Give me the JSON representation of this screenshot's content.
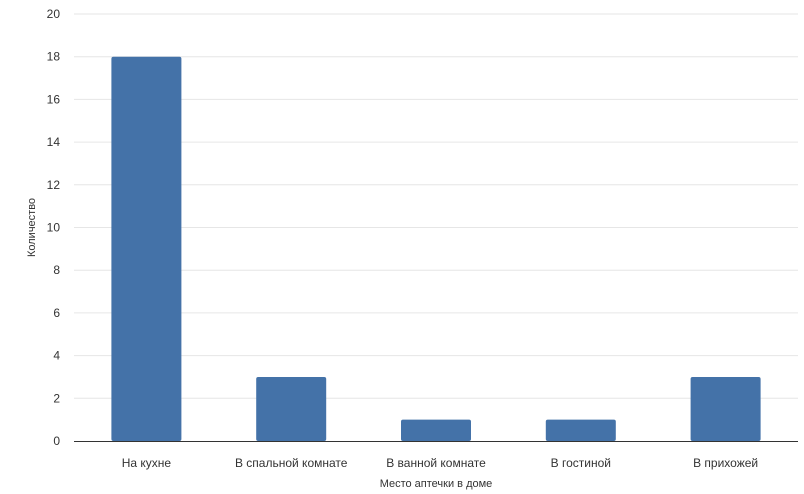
{
  "chart_data": {
    "type": "bar",
    "title": "",
    "xlabel": "Место аптечки в доме",
    "ylabel": "Количество",
    "categories": [
      "На кухне",
      "В спальной комнате",
      "В ванной комнате",
      "В гостиной",
      "В прихожей"
    ],
    "values": [
      18,
      3,
      1,
      1,
      3
    ],
    "ylim": [
      0,
      20
    ],
    "yticks": [
      "0",
      "2",
      "4",
      "6",
      "8",
      "10",
      "12",
      "14",
      "16",
      "18",
      "20"
    ],
    "grid": true,
    "legend": "none",
    "bar_color": "#4472a8",
    "grid_color": "#e6e6e6",
    "axis_color": "#333333"
  }
}
